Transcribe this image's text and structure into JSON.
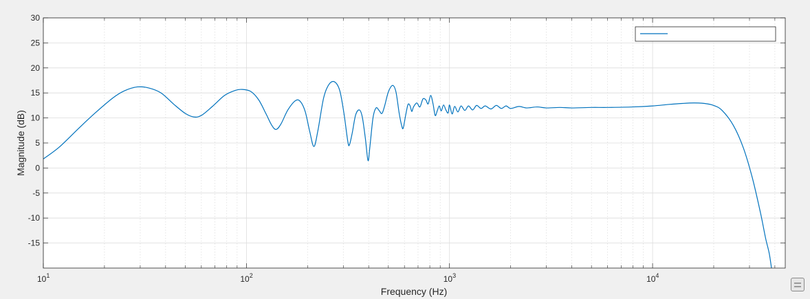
{
  "chart_data": {
    "type": "line",
    "title": "",
    "xlabel": "Frequency (Hz)",
    "ylabel": "Magnitude (dB)",
    "x_scale": "log",
    "xlim": [
      10,
      45000
    ],
    "ylim": [
      -20,
      30
    ],
    "grid": "on (major and minor)",
    "legend": "top-right",
    "x_ticks": [
      {
        "base": "10",
        "exp": "1"
      },
      {
        "base": "10",
        "exp": "2"
      },
      {
        "base": "10",
        "exp": "3"
      },
      {
        "base": "10",
        "exp": "4"
      }
    ],
    "y_ticks": [
      "30",
      "25",
      "20",
      "15",
      "10",
      "5",
      "0",
      "-5",
      "-10",
      "-15"
    ],
    "y_tick_values": [
      30,
      25,
      20,
      15,
      10,
      5,
      0,
      -5,
      -10,
      -15
    ],
    "series": [
      {
        "color": "#0072bd",
        "points": [
          [
            10,
            1.8
          ],
          [
            12,
            4.2
          ],
          [
            15,
            8.0
          ],
          [
            18,
            11.0
          ],
          [
            22,
            14.0
          ],
          [
            25,
            15.4
          ],
          [
            29,
            16.2
          ],
          [
            33,
            16.0
          ],
          [
            38,
            15.0
          ],
          [
            44,
            12.7
          ],
          [
            50,
            10.9
          ],
          [
            55,
            10.2
          ],
          [
            60,
            10.5
          ],
          [
            68,
            12.3
          ],
          [
            78,
            14.5
          ],
          [
            88,
            15.5
          ],
          [
            95,
            15.7
          ],
          [
            105,
            15.3
          ],
          [
            115,
            13.6
          ],
          [
            125,
            10.8
          ],
          [
            133,
            8.6
          ],
          [
            140,
            7.7
          ],
          [
            148,
            8.8
          ],
          [
            160,
            11.6
          ],
          [
            175,
            13.5
          ],
          [
            185,
            13.2
          ],
          [
            195,
            11.2
          ],
          [
            205,
            7.3
          ],
          [
            215,
            4.3
          ],
          [
            225,
            7.5
          ],
          [
            240,
            14.0
          ],
          [
            255,
            16.7
          ],
          [
            272,
            17.2
          ],
          [
            288,
            15.5
          ],
          [
            302,
            11.0
          ],
          [
            316,
            5.2
          ],
          [
            322,
            4.7
          ],
          [
            332,
            7.0
          ],
          [
            345,
            10.6
          ],
          [
            360,
            11.6
          ],
          [
            372,
            10.2
          ],
          [
            385,
            6.0
          ],
          [
            397,
            1.5
          ],
          [
            405,
            4.0
          ],
          [
            420,
            10.0
          ],
          [
            435,
            12.0
          ],
          [
            450,
            11.5
          ],
          [
            465,
            10.9
          ],
          [
            480,
            12.5
          ],
          [
            500,
            15.2
          ],
          [
            525,
            16.5
          ],
          [
            545,
            15.2
          ],
          [
            565,
            11.0
          ],
          [
            582,
            8.4
          ],
          [
            592,
            8.0
          ],
          [
            608,
            10.5
          ],
          [
            625,
            12.7
          ],
          [
            640,
            12.4
          ],
          [
            652,
            11.3
          ],
          [
            665,
            12.2
          ],
          [
            690,
            13.0
          ],
          [
            715,
            12.2
          ],
          [
            740,
            13.8
          ],
          [
            765,
            13.6
          ],
          [
            785,
            12.8
          ],
          [
            808,
            14.5
          ],
          [
            830,
            12.8
          ],
          [
            850,
            10.5
          ],
          [
            870,
            11.4
          ],
          [
            890,
            12.4
          ],
          [
            910,
            11.4
          ],
          [
            935,
            12.6
          ],
          [
            960,
            11.6
          ],
          [
            985,
            11.0
          ],
          [
            1000,
            12.6
          ],
          [
            1030,
            10.8
          ],
          [
            1060,
            12.3
          ],
          [
            1100,
            11.2
          ],
          [
            1140,
            12.4
          ],
          [
            1190,
            11.5
          ],
          [
            1240,
            12.4
          ],
          [
            1300,
            11.6
          ],
          [
            1360,
            12.5
          ],
          [
            1430,
            11.9
          ],
          [
            1500,
            12.4
          ],
          [
            1600,
            11.8
          ],
          [
            1700,
            12.5
          ],
          [
            1800,
            11.9
          ],
          [
            1900,
            12.4
          ],
          [
            2000,
            11.9
          ],
          [
            2200,
            12.3
          ],
          [
            2400,
            12.0
          ],
          [
            2700,
            12.2
          ],
          [
            3000,
            12.0
          ],
          [
            3500,
            12.1
          ],
          [
            4000,
            12.0
          ],
          [
            5000,
            12.1
          ],
          [
            6000,
            12.1
          ],
          [
            8000,
            12.2
          ],
          [
            10000,
            12.4
          ],
          [
            12000,
            12.7
          ],
          [
            14000,
            12.9
          ],
          [
            16000,
            13.0
          ],
          [
            18000,
            12.9
          ],
          [
            20000,
            12.5
          ],
          [
            22000,
            11.5
          ],
          [
            25000,
            8.5
          ],
          [
            28000,
            4.0
          ],
          [
            31000,
            -2.0
          ],
          [
            34000,
            -9.0
          ],
          [
            36000,
            -14.0
          ],
          [
            37500,
            -17.0
          ],
          [
            38500,
            -20.0
          ]
        ]
      }
    ]
  }
}
